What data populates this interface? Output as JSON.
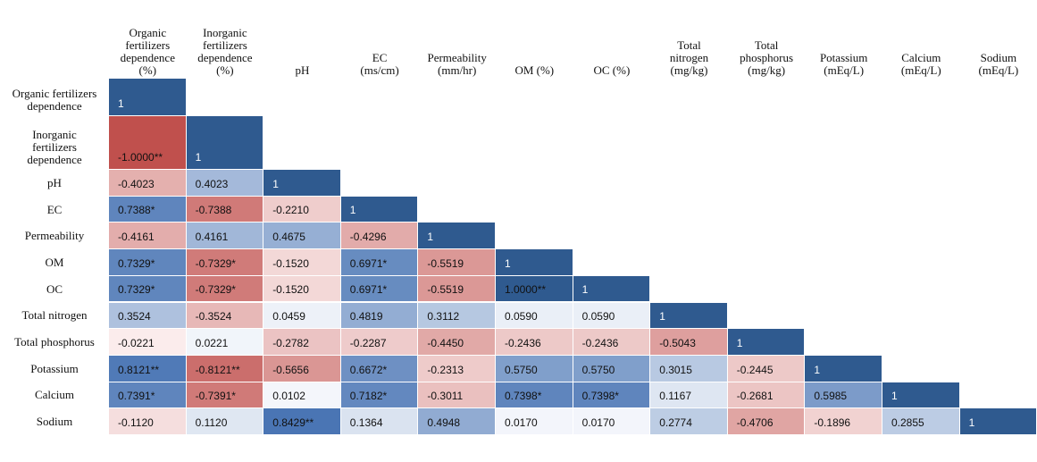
{
  "table": {
    "columns": [
      [
        "Organic",
        "fertilizers",
        "dependence",
        "(%)"
      ],
      [
        "Inorganic",
        "fertilizers",
        "dependence",
        "(%)"
      ],
      [
        "pH"
      ],
      [
        "EC",
        "(ms/cm)"
      ],
      [
        "Permeability",
        "(mm/hr)"
      ],
      [
        "OM (%)"
      ],
      [
        "OC (%)"
      ],
      [
        "Total",
        "nitrogen",
        "(mg/kg)"
      ],
      [
        "Total",
        "phosphorus",
        "(mg/kg)"
      ],
      [
        "Potassium",
        "(mEq/L)"
      ],
      [
        "Calcium",
        "(mEq/L)"
      ],
      [
        "Sodium",
        "(mEq/L)"
      ]
    ],
    "rows": [
      {
        "label": [
          "Organic fertilizers",
          "dependence"
        ],
        "cells": [
          "1"
        ]
      },
      {
        "label": [
          "Inorganic",
          "fertilizers",
          "dependence"
        ],
        "cells": [
          "-1.0000**",
          "1"
        ]
      },
      {
        "label": [
          "pH"
        ],
        "cells": [
          "-0.4023",
          "0.4023",
          "1"
        ]
      },
      {
        "label": [
          "EC"
        ],
        "cells": [
          "0.7388*",
          "-0.7388",
          "-0.2210",
          "1"
        ]
      },
      {
        "label": [
          "Permeability"
        ],
        "cells": [
          "-0.4161",
          "0.4161",
          "0.4675",
          "-0.4296",
          "1"
        ]
      },
      {
        "label": [
          "OM"
        ],
        "cells": [
          "0.7329*",
          "-0.7329*",
          "-0.1520",
          "0.6971*",
          "-0.5519",
          "1"
        ]
      },
      {
        "label": [
          "OC"
        ],
        "cells": [
          "0.7329*",
          "-0.7329*",
          "-0.1520",
          "0.6971*",
          "-0.5519",
          "1.0000**",
          "1"
        ]
      },
      {
        "label": [
          "Total nitrogen"
        ],
        "cells": [
          "0.3524",
          "-0.3524",
          "0.0459",
          "0.4819",
          "0.3112",
          "0.0590",
          "0.0590",
          "1"
        ]
      },
      {
        "label": [
          "Total phosphorus"
        ],
        "cells": [
          "-0.0221",
          "0.0221",
          "-0.2782",
          "-0.2287",
          "-0.4450",
          "-0.2436",
          "-0.2436",
          "-0.5043",
          "1"
        ]
      },
      {
        "label": [
          "Potassium"
        ],
        "cells": [
          "0.8121**",
          "-0.8121**",
          "-0.5656",
          "0.6672*",
          "-0.2313",
          "0.5750",
          "0.5750",
          "0.3015",
          "-0.2445",
          "1"
        ]
      },
      {
        "label": [
          "Calcium"
        ],
        "cells": [
          "0.7391*",
          "-0.7391*",
          "0.0102",
          "0.7182*",
          "-0.3011",
          "0.7398*",
          "0.7398*",
          "0.1167",
          "-0.2681",
          "0.5985",
          "1"
        ]
      },
      {
        "label": [
          "Sodium"
        ],
        "cells": [
          "-0.1120",
          "0.1120",
          "0.8429**",
          "0.1364",
          "0.4948",
          "0.0170",
          "0.0170",
          "0.2774",
          "-0.4706",
          "-0.1896",
          "0.2855",
          "1"
        ]
      }
    ]
  }
}
